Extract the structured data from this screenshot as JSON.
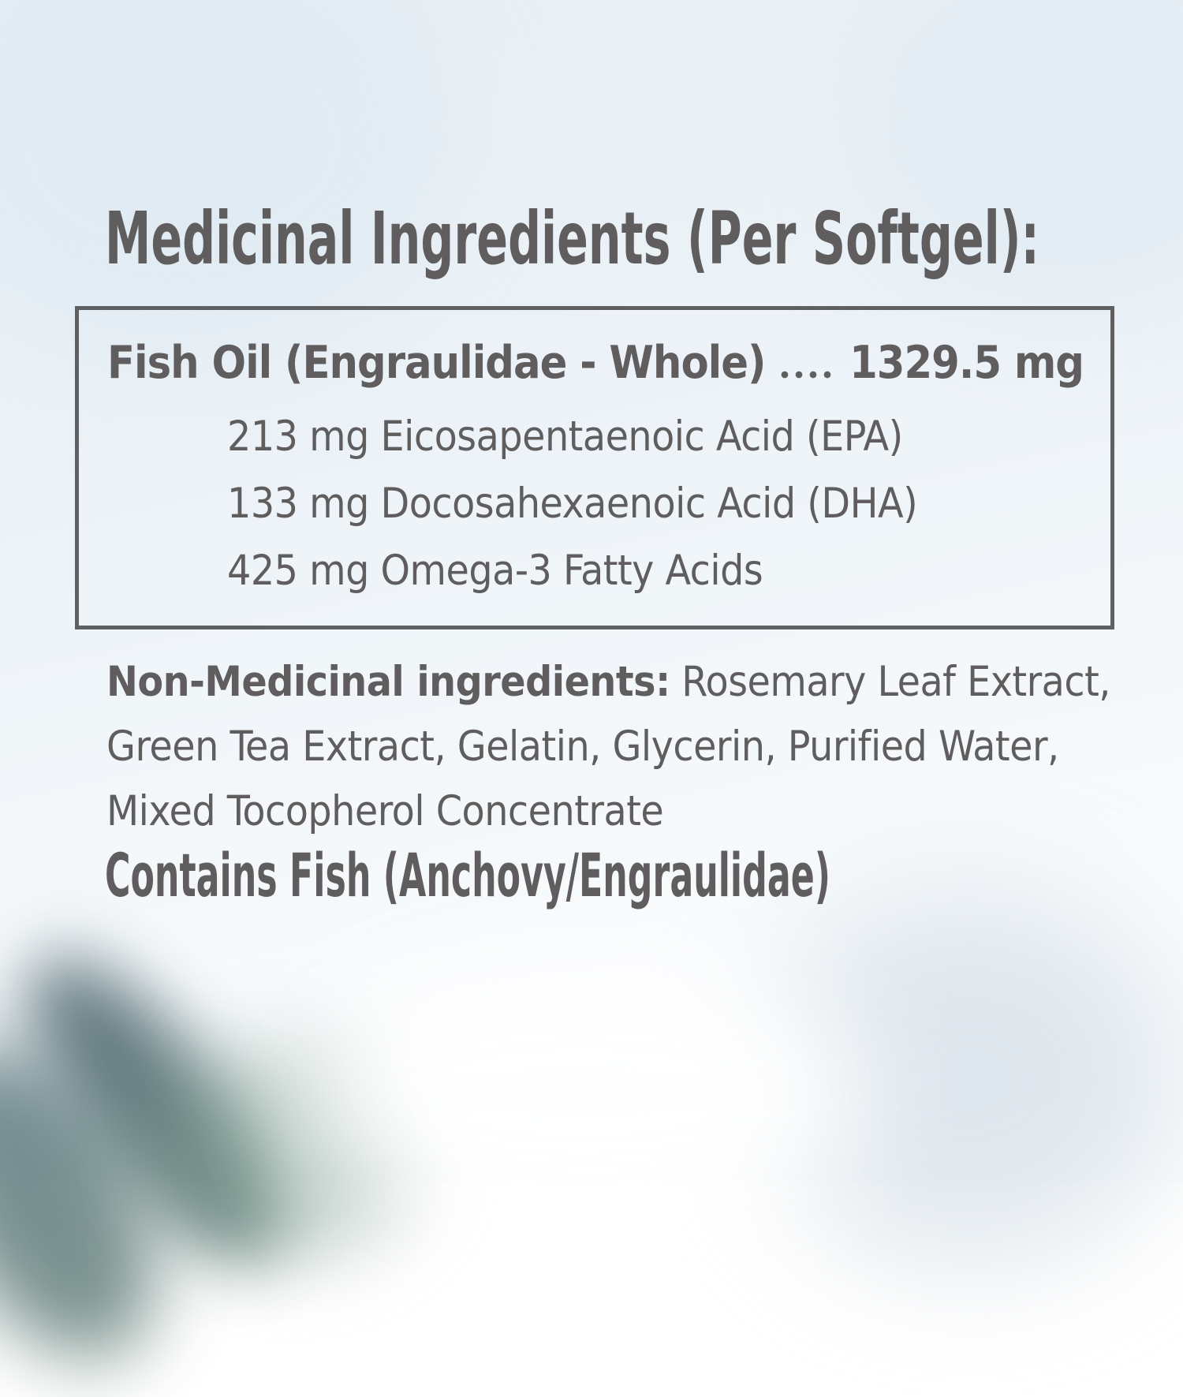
{
  "heading": "Medicinal Ingredients (Per Softgel):",
  "medicinal_box": {
    "main_ingredient": {
      "name": "Fish Oil (Engraulidae - Whole)",
      "amount": "1329.5 mg"
    },
    "components": [
      "213 mg Eicosapentaenoic Acid (EPA)",
      "133 mg Docosahexaenoic Acid (DHA)",
      "425 mg Omega-3 Fatty Acids"
    ]
  },
  "non_medicinal": {
    "label": "Non-Medicinal ingredients:",
    "line1_rest": " Rosemary Leaf Extract,",
    "line2": "Green Tea Extract, Gelatin, Glycerin, Purified Water,",
    "line3": "Mixed Tocopherol Concentrate"
  },
  "allergen_statement": "Contains Fish (Anchovy/Engraulidae)",
  "colors": {
    "text": "#5f5d5e",
    "box_border": "#5e6062",
    "background_tint": "#eaf1f6",
    "plant_blur": "#527079"
  }
}
